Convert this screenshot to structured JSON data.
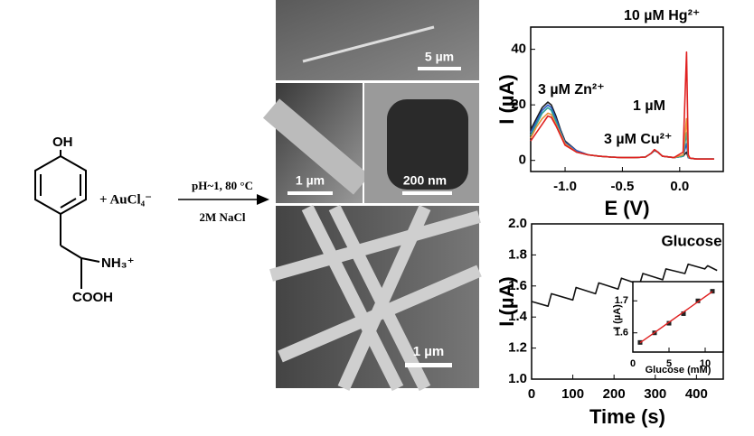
{
  "scheme": {
    "reactant_top": "OH",
    "reactant_amine": "NH₃⁺",
    "reactant_acid": "COOH",
    "reagent": "+ AuCl₄⁻",
    "condition_1": "pH~1, 80 °C",
    "condition_2": "2M NaCl"
  },
  "micrographs": [
    {
      "scale_bar": "5 µm"
    },
    {
      "scale_bar": "1 µm"
    },
    {
      "scale_bar": "200 nm"
    },
    {
      "scale_bar": "1 µm"
    }
  ],
  "chart_data": [
    {
      "type": "line",
      "x_label": "E (V)",
      "y_label": "I (µA)",
      "annotations": [
        "10 µM Hg²⁺",
        "1 µM",
        "3 µM Zn²⁺",
        "3 µM Cu²⁺"
      ],
      "x": [
        -1.3,
        -1.25,
        -1.2,
        -1.15,
        -1.12,
        -1.08,
        -1.04,
        -1.0,
        -0.9,
        -0.8,
        -0.7,
        -0.6,
        -0.5,
        -0.4,
        -0.3,
        -0.25,
        -0.22,
        -0.19,
        -0.15,
        -0.05,
        0.03,
        0.06,
        0.075,
        0.09,
        0.15,
        0.3
      ],
      "series": [
        {
          "color": "#1a1a1a",
          "values": [
            11,
            15,
            19,
            21,
            20,
            16,
            11,
            7,
            3.5,
            2,
            1.5,
            1.2,
            1,
            1,
            1.2,
            2.5,
            3.5,
            3,
            1.5,
            1,
            1.5,
            3,
            1,
            0.8,
            0.5,
            0.5
          ]
        },
        {
          "color": "#2b59c3",
          "values": [
            10,
            14,
            18,
            20,
            19,
            15,
            10.5,
            6.5,
            3.5,
            2,
            1.5,
            1.2,
            1,
            1,
            1.2,
            2.5,
            3.6,
            3,
            1.5,
            1,
            1.5,
            6,
            1,
            0.8,
            0.5,
            0.5
          ]
        },
        {
          "color": "#2aa198",
          "values": [
            9,
            13,
            17,
            19,
            18,
            14,
            10,
            6,
            3,
            2,
            1.5,
            1.2,
            1,
            1,
            1.2,
            2.5,
            3.7,
            3,
            1.5,
            1,
            1.5,
            10,
            1.2,
            0.8,
            0.5,
            0.5
          ]
        },
        {
          "color": "#e8923a",
          "values": [
            8,
            12,
            15,
            17,
            16.5,
            13,
            9.5,
            6,
            3,
            2,
            1.5,
            1.2,
            1,
            1,
            1.2,
            2.5,
            3.8,
            3,
            1.5,
            1,
            2,
            15,
            1.5,
            0.8,
            0.5,
            0.5
          ]
        },
        {
          "color": "#e02020",
          "values": [
            7,
            10,
            13,
            16,
            15.5,
            12.5,
            9,
            5.5,
            3,
            2,
            1.5,
            1.2,
            1,
            1,
            1.2,
            2.5,
            3.9,
            3,
            1.5,
            1,
            3,
            39,
            2,
            0.8,
            0.5,
            0.5
          ]
        }
      ],
      "xlim": [
        -1.3,
        0.38
      ],
      "ylim": [
        -4,
        48
      ],
      "xticks": [
        {
          "value": -1,
          "label": "-1.0"
        },
        {
          "value": -0.5,
          "label": "-0.5"
        },
        {
          "value": 0,
          "label": "0.0"
        }
      ],
      "yticks": [
        0,
        20,
        40
      ]
    },
    {
      "type": "line",
      "title": "Glucose",
      "x_label": "Time (s)",
      "y_label": "I (µA)",
      "x": [
        0,
        40,
        48,
        100,
        108,
        155,
        163,
        210,
        218,
        262,
        270,
        318,
        326,
        372,
        380,
        420,
        427,
        450
      ],
      "series": [
        {
          "color": "#111111",
          "values": [
            1.5,
            1.47,
            1.55,
            1.51,
            1.59,
            1.55,
            1.62,
            1.58,
            1.65,
            1.61,
            1.68,
            1.64,
            1.71,
            1.68,
            1.74,
            1.71,
            1.73,
            1.7
          ]
        }
      ],
      "xlim": [
        0,
        465
      ],
      "ylim": [
        1.0,
        2.0
      ],
      "xticks": [
        0,
        100,
        200,
        300,
        400
      ],
      "yticks": [
        {
          "value": 1,
          "label": "1.0"
        },
        {
          "value": 1.2,
          "label": "1.2"
        },
        {
          "value": 1.4,
          "label": "1.4"
        },
        {
          "value": 1.6,
          "label": "1.6"
        },
        {
          "value": 1.8,
          "label": "1.8"
        },
        {
          "value": 2,
          "label": "2.0"
        }
      ]
    },
    {
      "type": "scatter",
      "x_label": "Glucose (mM)",
      "y_label": "I (µA)",
      "x": [
        1,
        3,
        5,
        7,
        9,
        11
      ],
      "series": [
        {
          "color": "#222222",
          "values": [
            1.57,
            1.6,
            1.63,
            1.66,
            1.7,
            1.73
          ]
        },
        {
          "color": "#e02020",
          "style": "line",
          "values": [
            1.569,
            1.601,
            1.633,
            1.665,
            1.697,
            1.729
          ]
        }
      ],
      "xlim": [
        0,
        12.5
      ],
      "ylim": [
        1.54,
        1.76
      ],
      "xticks": [
        0,
        5,
        10
      ],
      "yticks": [
        1.6,
        1.7
      ]
    }
  ]
}
